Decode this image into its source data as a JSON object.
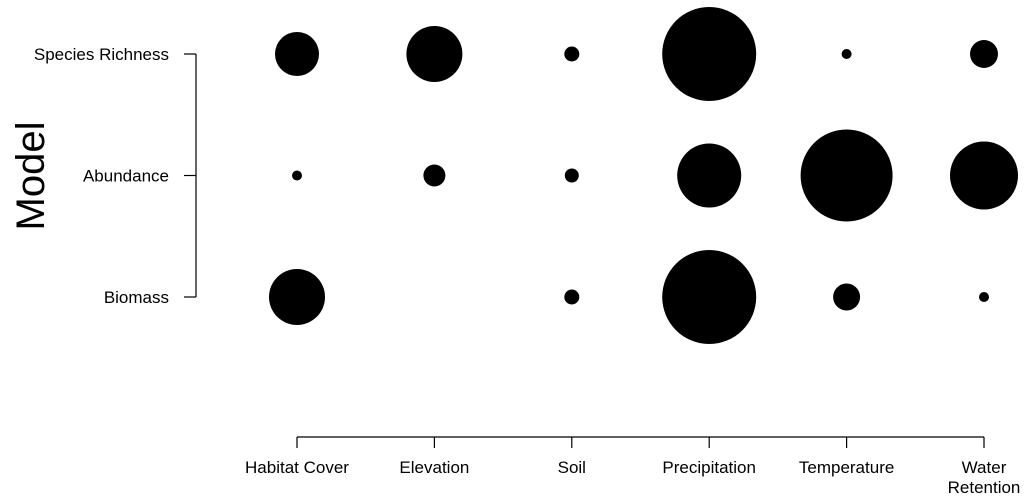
{
  "chart_data": {
    "type": "scatter",
    "encoding": "bubble",
    "ylabel": "Model",
    "xlabel": "",
    "title": "",
    "categories_x": [
      "Habitat Cover",
      "Elevation",
      "Soil",
      "Precipitation",
      "Temperature",
      "Water Retention"
    ],
    "categories_y": [
      "Species Richness",
      "Abundance",
      "Biomass"
    ],
    "points": [
      {
        "y": "Species Richness",
        "x": "Habitat Cover",
        "size": 22
      },
      {
        "y": "Species Richness",
        "x": "Elevation",
        "size": 28
      },
      {
        "y": "Species Richness",
        "x": "Soil",
        "size": 7.5
      },
      {
        "y": "Species Richness",
        "x": "Precipitation",
        "size": 47
      },
      {
        "y": "Species Richness",
        "x": "Temperature",
        "size": 5
      },
      {
        "y": "Species Richness",
        "x": "Water Retention",
        "size": 14
      },
      {
        "y": "Abundance",
        "x": "Habitat Cover",
        "size": 5
      },
      {
        "y": "Abundance",
        "x": "Elevation",
        "size": 11
      },
      {
        "y": "Abundance",
        "x": "Soil",
        "size": 7
      },
      {
        "y": "Abundance",
        "x": "Precipitation",
        "size": 32
      },
      {
        "y": "Abundance",
        "x": "Temperature",
        "size": 46
      },
      {
        "y": "Abundance",
        "x": "Water Retention",
        "size": 34
      },
      {
        "y": "Biomass",
        "x": "Habitat Cover",
        "size": 28
      },
      {
        "y": "Biomass",
        "x": "Soil",
        "size": 7.5
      },
      {
        "y": "Biomass",
        "x": "Precipitation",
        "size": 47
      },
      {
        "y": "Biomass",
        "x": "Temperature",
        "size": 13.5
      },
      {
        "y": "Biomass",
        "x": "Water Retention",
        "size": 5
      }
    ],
    "grid": false,
    "legend": "none"
  }
}
